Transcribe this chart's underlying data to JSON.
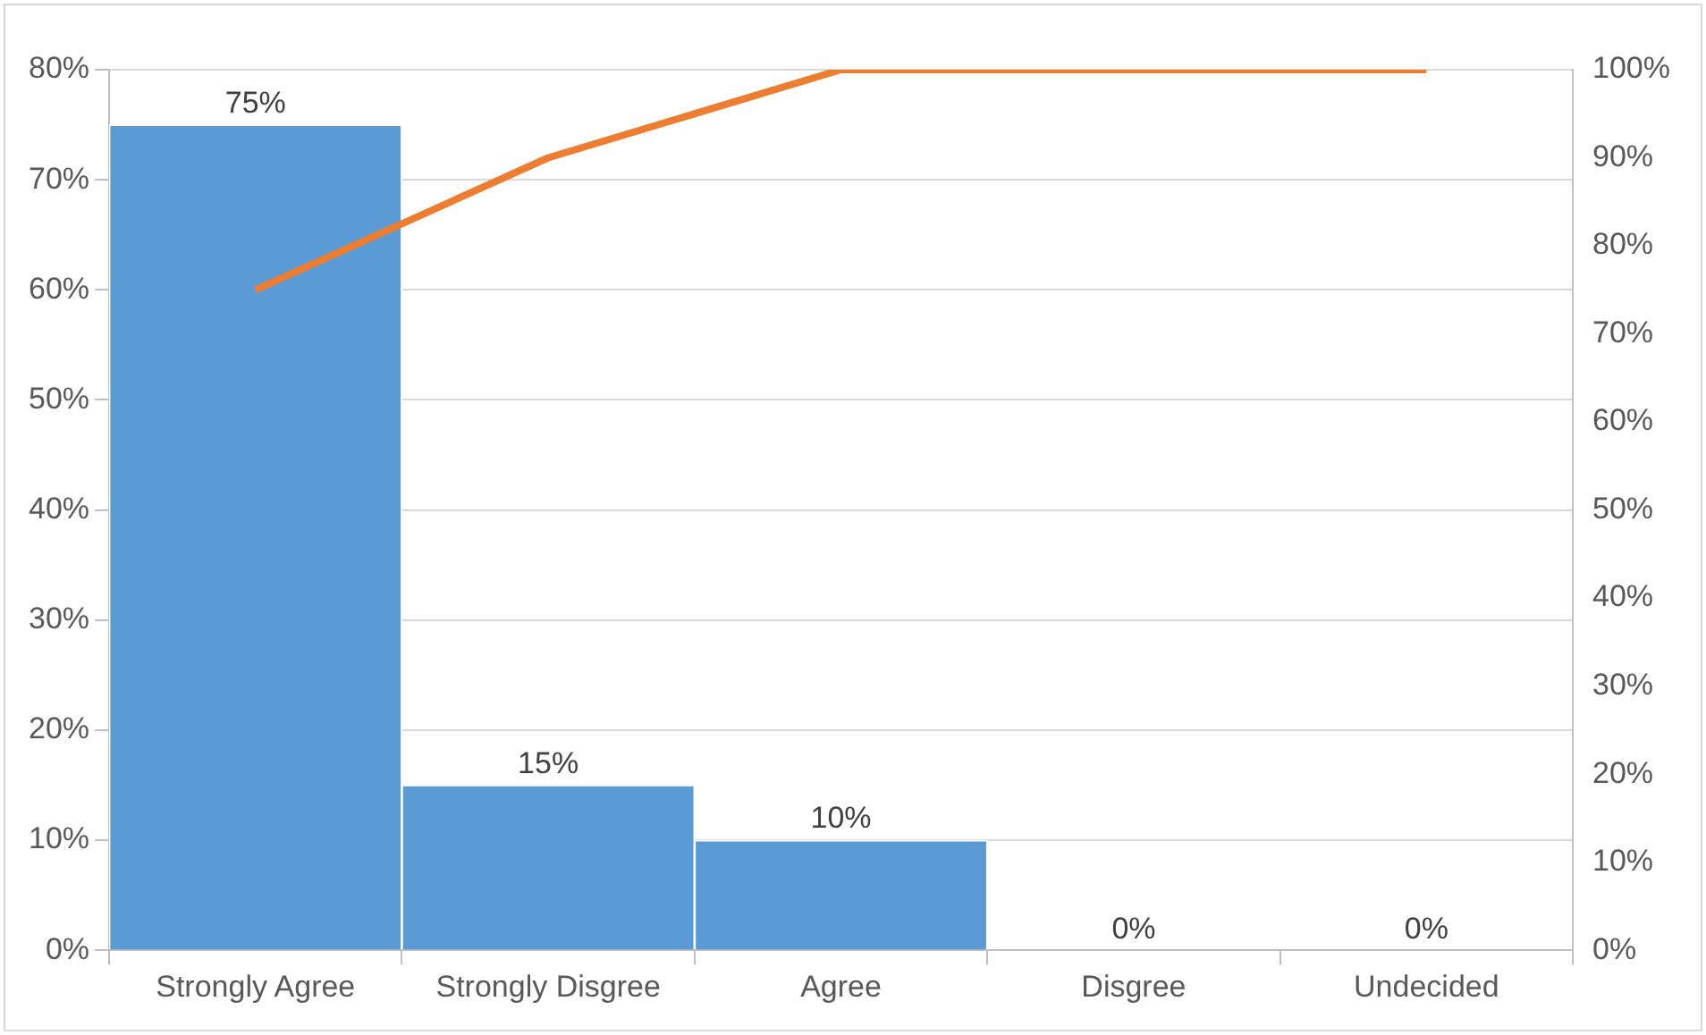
{
  "chart_data": {
    "type": "bar",
    "categories": [
      "Strongly Agree",
      "Strongly Disgree",
      "Agree",
      "Disgree",
      "Undecided"
    ],
    "series": [
      {
        "color": "#5b9bd5",
        "values": [
          75,
          15,
          10,
          0,
          0
        ],
        "value_labels": [
          "75%",
          "15%",
          "10%",
          "0%",
          "0%"
        ]
      },
      {
        "type": "line",
        "axis": "y2",
        "color": "#ed7d31",
        "values": [
          75,
          90,
          100,
          100,
          100
        ]
      }
    ],
    "ylim": [
      0,
      80
    ],
    "yticks": [
      {
        "value": 0,
        "label": "0%"
      },
      {
        "value": 10,
        "label": "10%"
      },
      {
        "value": 20,
        "label": "20%"
      },
      {
        "value": 30,
        "label": "30%"
      },
      {
        "value": 40,
        "label": "40%"
      },
      {
        "value": 50,
        "label": "50%"
      },
      {
        "value": 60,
        "label": "60%"
      },
      {
        "value": 70,
        "label": "70%"
      },
      {
        "value": 80,
        "label": "80%"
      }
    ],
    "y2lim": [
      0,
      100
    ],
    "y2ticks": [
      {
        "value": 0,
        "label": "0%"
      },
      {
        "value": 10,
        "label": "10%"
      },
      {
        "value": 20,
        "label": "20%"
      },
      {
        "value": 30,
        "label": "30%"
      },
      {
        "value": 40,
        "label": "40%"
      },
      {
        "value": 50,
        "label": "50%"
      },
      {
        "value": 60,
        "label": "60%"
      },
      {
        "value": 70,
        "label": "70%"
      },
      {
        "value": 80,
        "label": "80%"
      },
      {
        "value": 90,
        "label": "90%"
      },
      {
        "value": 100,
        "label": "100%"
      }
    ],
    "grid": "y",
    "legend": false,
    "marker": "none"
  }
}
